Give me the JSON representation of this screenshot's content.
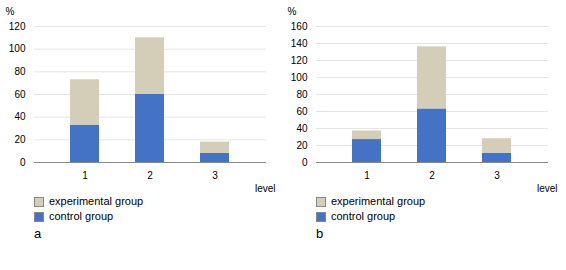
{
  "chart_data": [
    {
      "type": "bar",
      "title": "a",
      "xlabel": "level",
      "ylabel": "%",
      "categories": [
        "1",
        "2",
        "3"
      ],
      "series": [
        {
          "name": "control group",
          "color": "#4472c4",
          "values": [
            33,
            60,
            8
          ]
        },
        {
          "name": "experimental group",
          "color": "#d4cdb8",
          "values": [
            40,
            50,
            10
          ]
        }
      ],
      "stacked": true,
      "grid": true,
      "legend": "below",
      "ylim": [
        0,
        120
      ],
      "yticks": [
        0,
        20,
        40,
        60,
        80,
        100,
        120
      ]
    },
    {
      "type": "bar",
      "title": "b",
      "xlabel": "level",
      "ylabel": "%",
      "categories": [
        "1",
        "2",
        "3"
      ],
      "series": [
        {
          "name": "control group",
          "color": "#4472c4",
          "values": [
            27,
            63,
            11
          ]
        },
        {
          "name": "experimental group",
          "color": "#d4cdb8",
          "values": [
            10,
            73,
            17
          ]
        }
      ],
      "stacked": true,
      "grid": true,
      "legend": "below",
      "ylim": [
        0,
        160
      ],
      "yticks": [
        0,
        20,
        40,
        60,
        80,
        100,
        120,
        140,
        160
      ]
    }
  ]
}
